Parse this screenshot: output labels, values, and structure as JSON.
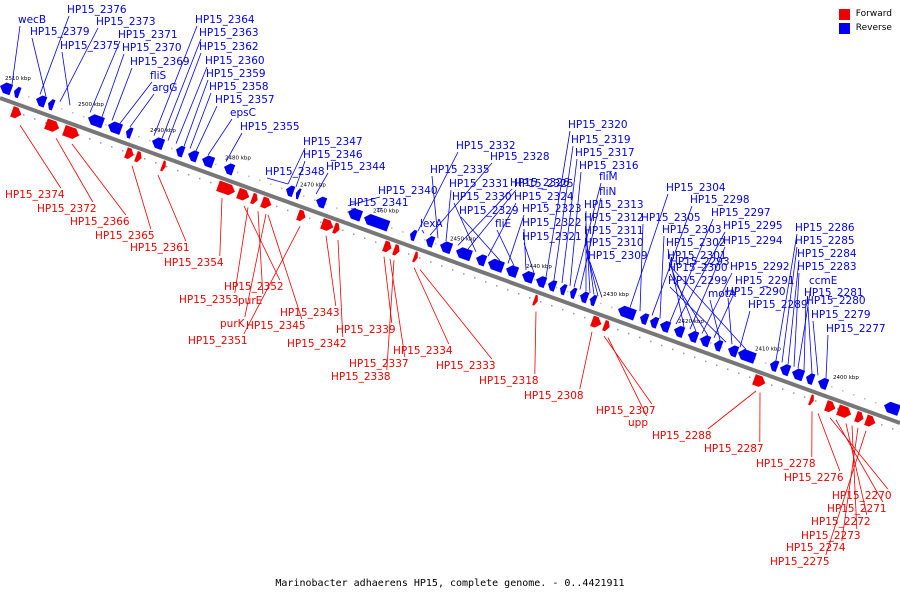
{
  "caption": "Marinobacter adhaerens HP15, complete genome. - 0..4421911",
  "legend": [
    {
      "label": "Forward",
      "color": "#ee0000"
    },
    {
      "label": "Reverse",
      "color": "#0000ee"
    }
  ],
  "colors": {
    "forward": "#ee0000",
    "reverse": "#0000ee",
    "backbone": "#777777"
  },
  "ticks": [
    "2510 kbp",
    "2500 kbp",
    "2490 kbp",
    "2480 kbp",
    "2470 kbp",
    "2460 kbp",
    "2450 kbp",
    "2440 kbp",
    "2430 kbp",
    "2420 kbp",
    "2410 kbp",
    "2400 kbp"
  ],
  "reverse_labels": [
    "wecB",
    "HP15_2376",
    "HP15_2379",
    "HP15_2373",
    "HP15_2375",
    "HP15_2371",
    "HP15_2370",
    "HP15_2369",
    "fliS",
    "argG",
    "HP15_2364",
    "HP15_2363",
    "HP15_2362",
    "HP15_2360",
    "HP15_2359",
    "HP15_2358",
    "HP15_2357",
    "epsC",
    "HP15_2355",
    "HP15_2347",
    "HP15_2346",
    "HP15_2344",
    "HP15_2348",
    "HP15_2340",
    "HP15_2341",
    "HP15_2332",
    "HP15_2328",
    "HP15_2335",
    "HP15_2331",
    "HP15_2326",
    "HP15_2325",
    "HP15_2330",
    "HP15_2324",
    "HP15_2329",
    "HP15_2323",
    "lexA",
    "fliE",
    "HP15_2322",
    "HP15_2321",
    "HP15_2320",
    "HP15_2319",
    "HP15_2317",
    "HP15_2316",
    "fliM",
    "fliN",
    "HP15_2313",
    "HP15_2312",
    "HP15_2311",
    "HP15_2310",
    "HP15_2309",
    "HP15_2304",
    "HP15_2305",
    "HP15_2298",
    "HP15_2303",
    "HP15_2297",
    "HP15_2295",
    "HP15_2302",
    "HP15_2294",
    "HP15_2301",
    "HP15_2292",
    "HP15_2300",
    "HP15_2291",
    "motA",
    "HP15_2299",
    "HP15_2290",
    "HP15_2289",
    "HP15_2293",
    "HP15_2286",
    "HP15_2285",
    "HP15_2284",
    "HP15_2283",
    "ccmE",
    "HP15_2281",
    "HP15_2280",
    "HP15_2279",
    "HP15_2277"
  ],
  "forward_labels": [
    "HP15_2374",
    "HP15_2372",
    "HP15_2366",
    "HP15_2365",
    "HP15_2361",
    "HP15_2354",
    "HP15_2352",
    "HP15_2353",
    "purE",
    "purK",
    "HP15_2345",
    "HP15_2351",
    "HP15_2343",
    "HP15_2342",
    "HP15_2339",
    "HP15_2337",
    "HP15_2338",
    "HP15_2334",
    "HP15_2333",
    "HP15_2318",
    "HP15_2308",
    "HP15_2307",
    "upp",
    "HP15_2288",
    "HP15_2287",
    "HP15_2278",
    "HP15_2276",
    "HP15_2270",
    "HP15_2271",
    "HP15_2272",
    "HP15_2273",
    "HP15_2274",
    "HP15_2275"
  ]
}
